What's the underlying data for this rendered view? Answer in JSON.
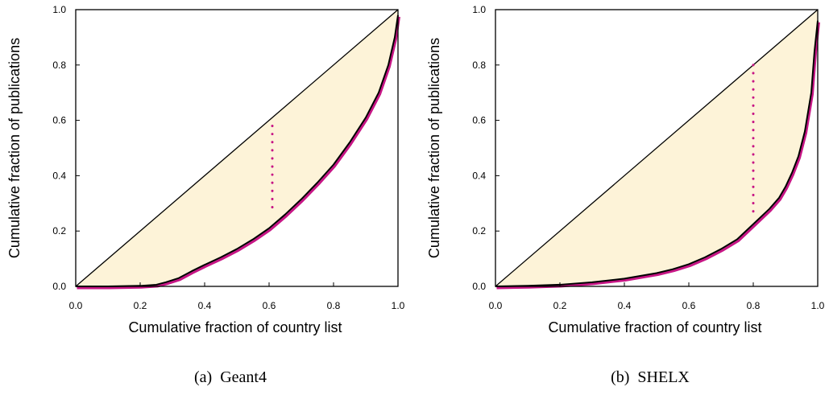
{
  "chart_data": [
    {
      "type": "area",
      "caption": "(a)  Geant4",
      "xlabel": "Cumulative fraction of country list",
      "ylabel": "Cumulative fraction of publications",
      "xlim": [
        0,
        1
      ],
      "ylim": [
        0,
        1
      ],
      "xticks": [
        "0.0",
        "0.2",
        "0.4",
        "0.6",
        "0.8",
        "1.0"
      ],
      "yticks": [
        "0.0",
        "0.2",
        "0.4",
        "0.6",
        "0.8",
        "1.0"
      ],
      "grid": false,
      "equality_line": {
        "x": [
          0,
          1
        ],
        "y": [
          0,
          1
        ]
      },
      "lorenz_curve": {
        "x": [
          0.0,
          0.1,
          0.2,
          0.25,
          0.28,
          0.32,
          0.36,
          0.4,
          0.45,
          0.5,
          0.55,
          0.6,
          0.65,
          0.7,
          0.75,
          0.8,
          0.85,
          0.9,
          0.94,
          0.97,
          0.99,
          1.0
        ],
        "y": [
          0.0,
          0.0,
          0.002,
          0.006,
          0.015,
          0.03,
          0.055,
          0.078,
          0.105,
          0.135,
          0.17,
          0.21,
          0.26,
          0.315,
          0.375,
          0.44,
          0.52,
          0.61,
          0.7,
          0.8,
          0.9,
          0.98
        ]
      },
      "max_distance_marker": {
        "x": 0.61,
        "y_from": 0.27,
        "y_to": 0.58
      },
      "colors": {
        "fill": "#fdf3d8",
        "curve": "#000000",
        "curve_shadow": "#c71585",
        "marker": "#c71585",
        "equality": "#000000"
      }
    },
    {
      "type": "area",
      "caption": "(b)  SHELX",
      "xlabel": "Cumulative fraction of country list",
      "ylabel": "Cumulative fraction of publications",
      "xlim": [
        0,
        1
      ],
      "ylim": [
        0,
        1
      ],
      "xticks": [
        "0.0",
        "0.2",
        "0.4",
        "0.6",
        "0.8",
        "1.0"
      ],
      "yticks": [
        "0.0",
        "0.2",
        "0.4",
        "0.6",
        "0.8",
        "1.0"
      ],
      "grid": false,
      "equality_line": {
        "x": [
          0,
          1
        ],
        "y": [
          0,
          1
        ]
      },
      "lorenz_curve": {
        "x": [
          0.0,
          0.1,
          0.2,
          0.3,
          0.4,
          0.5,
          0.55,
          0.6,
          0.65,
          0.7,
          0.75,
          0.8,
          0.85,
          0.88,
          0.9,
          0.92,
          0.94,
          0.96,
          0.98,
          0.99,
          1.0
        ],
        "y": [
          0.0,
          0.002,
          0.006,
          0.015,
          0.028,
          0.048,
          0.062,
          0.08,
          0.105,
          0.135,
          0.17,
          0.225,
          0.28,
          0.32,
          0.36,
          0.41,
          0.47,
          0.56,
          0.7,
          0.85,
          0.96
        ]
      },
      "max_distance_marker": {
        "x": 0.8,
        "y_from": 0.26,
        "y_to": 0.8
      },
      "colors": {
        "fill": "#fdf3d8",
        "curve": "#000000",
        "curve_shadow": "#c71585",
        "marker": "#c71585",
        "equality": "#000000"
      }
    }
  ]
}
